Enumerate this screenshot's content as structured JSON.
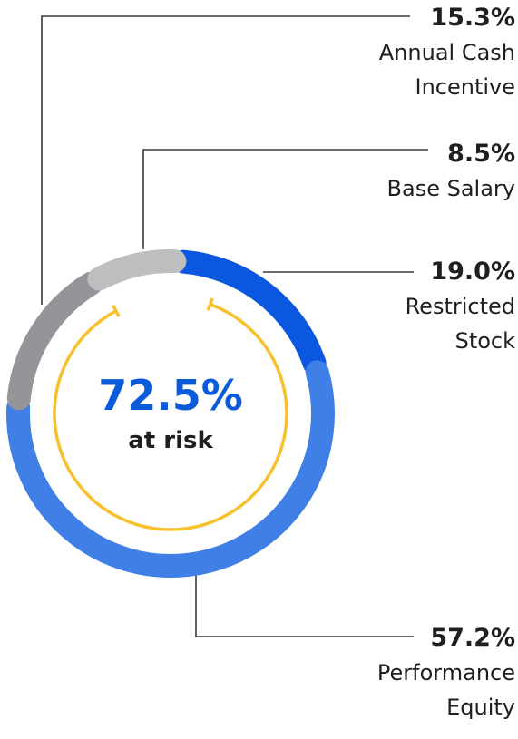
{
  "chart_data": {
    "type": "pie",
    "center": {
      "value": "72.5%",
      "label": "at risk"
    },
    "slices": [
      {
        "label_lines": [
          "Annual Cash",
          "Incentive"
        ],
        "value": 15.3,
        "value_text": "15.3%",
        "color": "#939598"
      },
      {
        "label_lines": [
          "Base Salary"
        ],
        "value": 8.5,
        "value_text": "8.5%",
        "color": "#bcbec0"
      },
      {
        "label_lines": [
          "Restricted",
          "Stock"
        ],
        "value": 19.0,
        "value_text": "19.0%",
        "color": "#0b57e0"
      },
      {
        "label_lines": [
          "Performance",
          "Equity"
        ],
        "value": 57.2,
        "value_text": "57.2%",
        "color": "#3f7fe6"
      }
    ],
    "at_risk_arc_color": "#f6c12c",
    "leader_color": "#3a3a3a"
  }
}
